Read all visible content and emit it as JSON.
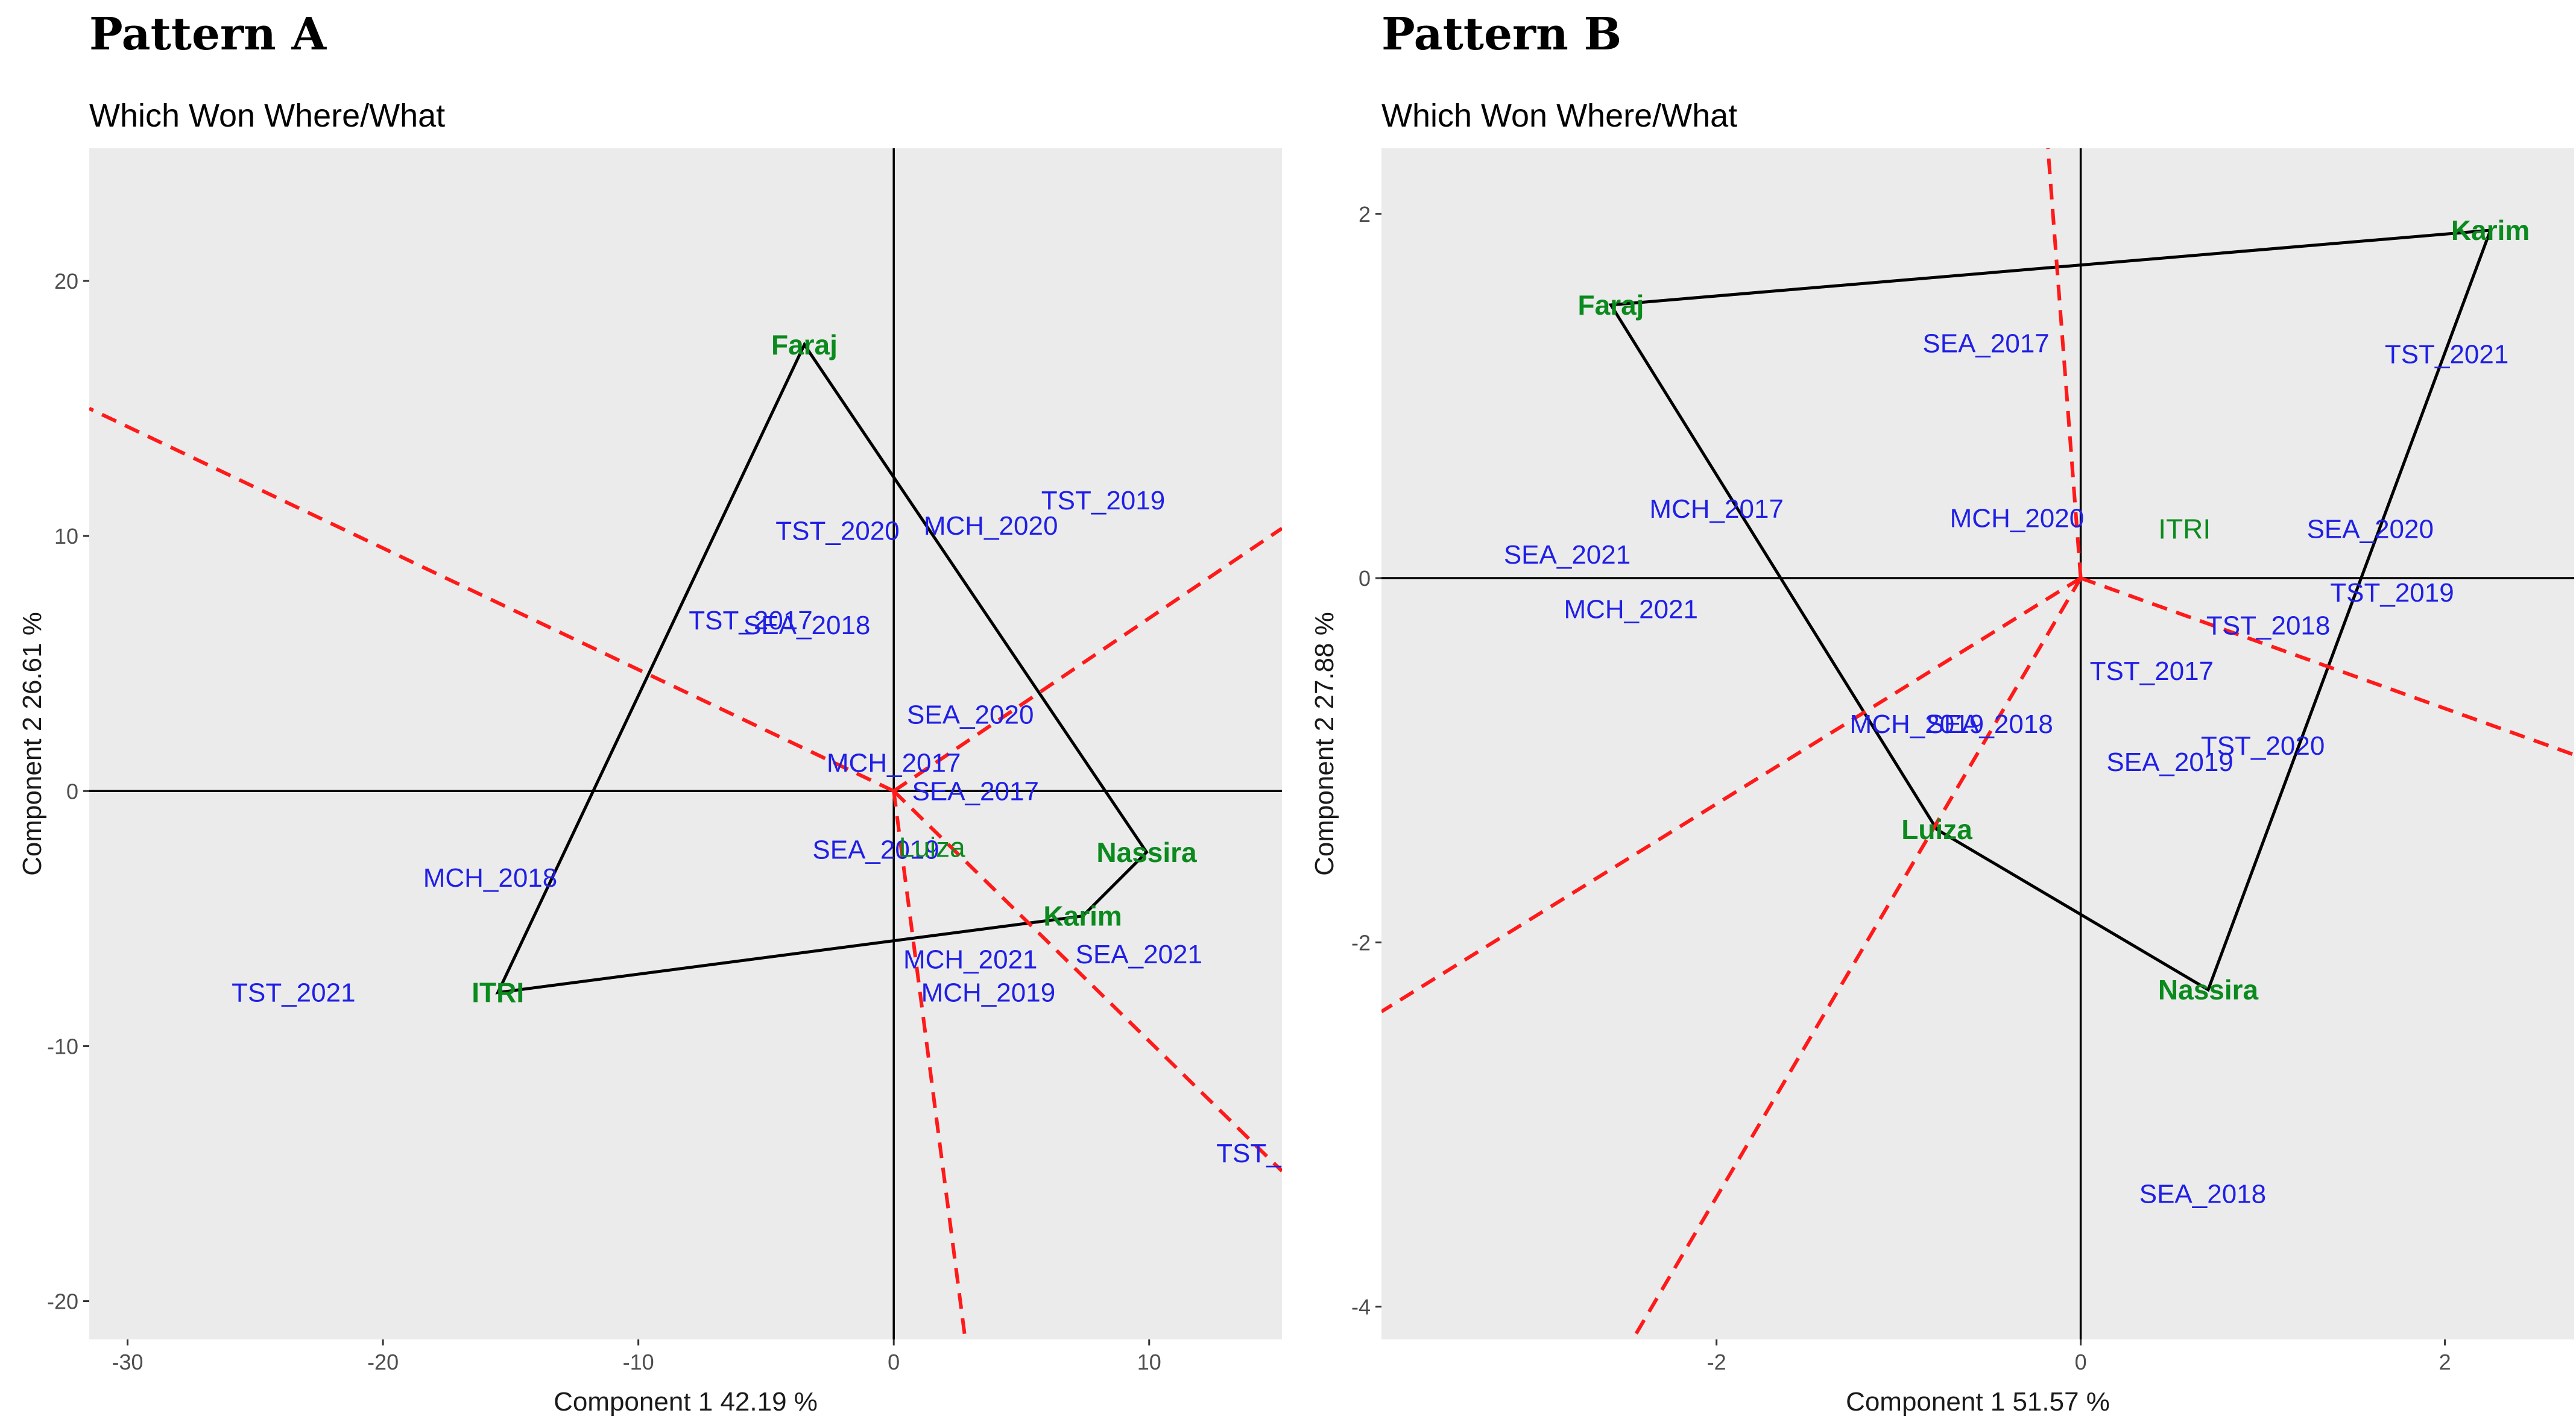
{
  "chart_data": [
    {
      "type": "scatter",
      "panel_title": "Pattern A",
      "title": "Which Won Where/What",
      "xlabel": "Component 1 42.19 %",
      "ylabel": "Component 2 26.61 %",
      "xlim": [
        -31.5,
        15.2
      ],
      "ylim": [
        -21.5,
        25.2
      ],
      "xticks": [
        -30,
        -20,
        -10,
        0,
        10
      ],
      "yticks": [
        -20,
        -10,
        0,
        10,
        20
      ],
      "origin": [
        0,
        0
      ],
      "genotypes": [
        {
          "label": "Faraj",
          "x": -3.5,
          "y": 17.5
        },
        {
          "label": "Nassira",
          "x": 9.9,
          "y": -2.4
        },
        {
          "label": "Karim",
          "x": 7.4,
          "y": -4.9
        },
        {
          "label": "ITRI",
          "x": -15.5,
          "y": -7.9
        },
        {
          "label": "Luiza",
          "x": 1.5,
          "y": -2.2,
          "style": "normal"
        }
      ],
      "hull": [
        "Faraj",
        "Nassira",
        "Karim",
        "ITRI"
      ],
      "environments": [
        {
          "label": "TST_2020",
          "x": -2.2,
          "y": 10.2
        },
        {
          "label": "MCH_2020",
          "x": 3.8,
          "y": 10.4
        },
        {
          "label": "TST_2019",
          "x": 8.2,
          "y": 11.4
        },
        {
          "label": "TST_2017",
          "x": -5.6,
          "y": 6.7
        },
        {
          "label": "SEA_2018",
          "x": -3.4,
          "y": 6.5
        },
        {
          "label": "SEA_2020",
          "x": 3.0,
          "y": 3.0
        },
        {
          "label": "MCH_2017",
          "x": 0.0,
          "y": 1.1
        },
        {
          "label": "SEA_2017",
          "x": 3.2,
          "y": 0.0
        },
        {
          "label": "SEA_2019",
          "x": -0.7,
          "y": -2.3
        },
        {
          "label": "MCH_2018",
          "x": -15.8,
          "y": -3.4
        },
        {
          "label": "MCH_2021",
          "x": 3.0,
          "y": -6.6
        },
        {
          "label": "SEA_2021",
          "x": 9.6,
          "y": -6.4
        },
        {
          "label": "MCH_2019",
          "x": 3.7,
          "y": -7.9
        },
        {
          "label": "TST_2021",
          "x": -23.5,
          "y": -7.9
        },
        {
          "label": "TST_",
          "x": 13.9,
          "y": -14.2
        }
      ],
      "sector_lines": [
        {
          "x1": 0,
          "y1": 0,
          "x2": -31.5,
          "y2": 15.0
        },
        {
          "x1": 0,
          "y1": 0,
          "x2": 15.2,
          "y2": 10.3
        },
        {
          "x1": 0,
          "y1": 0,
          "x2": 15.2,
          "y2": -14.9
        },
        {
          "x1": 0,
          "y1": 0,
          "x2": 2.8,
          "y2": -21.5
        }
      ]
    },
    {
      "type": "scatter",
      "panel_title": "Pattern B",
      "title": "Which Won Where/What",
      "xlabel": "Component 1 51.57 %",
      "ylabel": "Component 2 27.88 %",
      "xlim": [
        -3.84,
        2.71
      ],
      "ylim": [
        -4.18,
        2.36
      ],
      "xticks": [
        -2,
        0,
        2
      ],
      "yticks": [
        -4,
        -2,
        0,
        2
      ],
      "origin": [
        0,
        0
      ],
      "genotypes": [
        {
          "label": "Karim",
          "x": 2.25,
          "y": 1.91
        },
        {
          "label": "Faraj",
          "x": -2.58,
          "y": 1.5
        },
        {
          "label": "ITRI",
          "x": 0.57,
          "y": 0.27,
          "style": "normal"
        },
        {
          "label": "Luiza",
          "x": -0.79,
          "y": -1.38
        },
        {
          "label": "Nassira",
          "x": 0.7,
          "y": -2.26
        }
      ],
      "hull": [
        "Karim",
        "Faraj",
        "Luiza",
        "Nassira"
      ],
      "environments": [
        {
          "label": "SEA_2017",
          "x": -0.52,
          "y": 1.29
        },
        {
          "label": "TST_2021",
          "x": 2.01,
          "y": 1.23
        },
        {
          "label": "MCH_2017",
          "x": -2.0,
          "y": 0.38
        },
        {
          "label": "MCH_2020",
          "x": -0.35,
          "y": 0.33
        },
        {
          "label": "SEA_2021",
          "x": -2.82,
          "y": 0.13
        },
        {
          "label": "SEA_2020",
          "x": 1.59,
          "y": 0.27
        },
        {
          "label": "MCH_2021",
          "x": -2.47,
          "y": -0.17
        },
        {
          "label": "TST_2019",
          "x": 1.71,
          "y": -0.08
        },
        {
          "label": "TST_2018",
          "x": 1.03,
          "y": -0.26
        },
        {
          "label": "TST_2017",
          "x": 0.39,
          "y": -0.51
        },
        {
          "label": "MCH_2019",
          "x": -0.9,
          "y": -0.8
        },
        {
          "label": "SEA_2018",
          "x": -0.5,
          "y": -0.8
        },
        {
          "label": "SEA_2019",
          "x": 0.49,
          "y": -1.01
        },
        {
          "label": "TST_2020",
          "x": 1.0,
          "y": -0.92
        },
        {
          "label": "SEA_2018",
          "x": 0.67,
          "y": -3.38
        }
      ],
      "sector_lines": [
        {
          "x1": 0,
          "y1": 0,
          "x2": -0.18,
          "y2": 2.36
        },
        {
          "x1": 0,
          "y1": 0,
          "x2": 2.71,
          "y2": -0.97
        },
        {
          "x1": 0,
          "y1": 0,
          "x2": -3.84,
          "y2": -2.38
        },
        {
          "x1": 0,
          "y1": 0,
          "x2": -2.46,
          "y2": -4.18
        }
      ]
    }
  ]
}
